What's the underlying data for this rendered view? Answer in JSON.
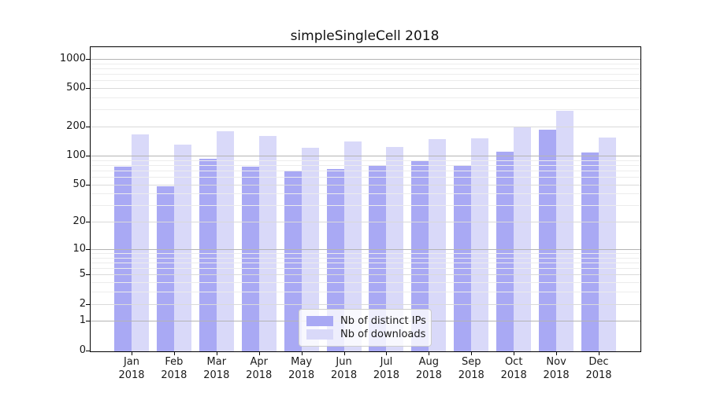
{
  "title": "simpleSingleCell 2018",
  "chart_data": {
    "type": "bar",
    "title": "simpleSingleCell 2018",
    "xlabel": "",
    "ylabel": "",
    "y_scale": "log1p",
    "grid": true,
    "legend_position": "bottom-center",
    "categories": [
      "Jan 2018",
      "Feb 2018",
      "Mar 2018",
      "Apr 2018",
      "May 2018",
      "Jun 2018",
      "Jul 2018",
      "Aug 2018",
      "Sep 2018",
      "Oct 2018",
      "Nov 2018",
      "Dec 2018"
    ],
    "series": [
      {
        "name": "Nb of distinct IPs",
        "color": "#a9a9f4",
        "values": [
          77,
          48,
          93,
          77,
          68,
          72,
          78,
          90,
          79,
          110,
          185,
          108
        ]
      },
      {
        "name": "Nb of downloads",
        "color": "#d9d9f9",
        "values": [
          166,
          131,
          179,
          159,
          120,
          139,
          122,
          147,
          150,
          200,
          290,
          154
        ]
      }
    ],
    "y_ticks": [
      1000,
      500,
      200,
      100,
      50,
      20,
      10,
      5,
      2,
      1,
      0
    ],
    "ylim": [
      0,
      1400
    ]
  },
  "colors": {
    "bar_dark": "#a9a9f4",
    "bar_light": "#d9d9f9",
    "grid_major": "#b4b4b4",
    "grid_medium": "#dadada",
    "grid_minor": "#ececec",
    "axis": "#000000",
    "text": "#1a1a1a"
  },
  "legend": {
    "items": [
      {
        "label": "Nb of distinct IPs",
        "color": "#a9a9f4"
      },
      {
        "label": "Nb of downloads",
        "color": "#d9d9f9"
      }
    ]
  }
}
